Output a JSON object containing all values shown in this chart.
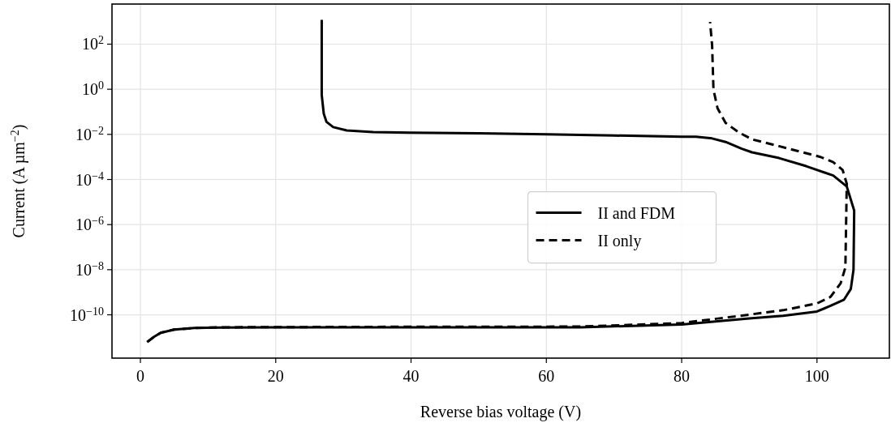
{
  "chart_data": {
    "type": "line",
    "xlabel": "Reverse bias voltage (V)",
    "ylabel": "Current (A µm$^{−2}$)",
    "log": "y",
    "grid": true,
    "legend": "center right",
    "xlim": [
      -4.2,
      110.7
    ],
    "xticks": [
      0,
      20,
      40,
      60,
      80,
      100
    ],
    "ylim": [
      1.2e-12,
      6000
    ],
    "yticks": [
      {
        "value": 100,
        "label": "10$^{2}$"
      },
      {
        "value": 1,
        "label": "10$^{0}$"
      },
      {
        "value": 0.01,
        "label": "10$^{−2}$"
      },
      {
        "value": 0.0001,
        "label": "10$^{−4}$"
      },
      {
        "value": 1e-06,
        "label": "10$^{−6}$"
      },
      {
        "value": 1e-08,
        "label": "10$^{−8}$"
      },
      {
        "value": 1e-10,
        "label": "10$^{−10}$"
      }
    ],
    "series": [
      {
        "name": "II and FDM",
        "color": "#000000",
        "line_style": "solid",
        "x": [
          1,
          2,
          3,
          5,
          8,
          12,
          20,
          40,
          65,
          80,
          90,
          95,
          100,
          102,
          104,
          105,
          105.4,
          105.5,
          104.4,
          102.4,
          98.4,
          94.4,
          90.4,
          88.9,
          86.5,
          84.5,
          82.1,
          80,
          70,
          60,
          50,
          40,
          34.4,
          30.5,
          28.5,
          27.5,
          27.1,
          26.8,
          26.8
        ],
        "values": [
          6.2e-12,
          1.05e-11,
          1.6e-11,
          2.2e-11,
          2.6e-11,
          2.75e-11,
          2.8e-11,
          2.8e-11,
          2.8e-11,
          3.7e-11,
          6.9e-11,
          9.1e-11,
          1.4e-10,
          2.5e-10,
          4.7e-10,
          1.4e-09,
          1e-08,
          4.2e-06,
          4.9e-05,
          0.00015,
          0.00039,
          0.00089,
          0.0016,
          0.0023,
          0.0046,
          0.0066,
          0.0078,
          0.0079,
          0.0089,
          0.01,
          0.0112,
          0.012,
          0.0126,
          0.015,
          0.021,
          0.036,
          0.083,
          0.56,
          1200
        ]
      },
      {
        "name": "II only",
        "color": "#000000",
        "line_style": "dashed",
        "x": [
          1,
          2,
          3,
          5,
          8,
          12,
          40,
          65,
          80,
          90,
          95,
          100,
          102,
          103.5,
          104.2,
          104.4,
          103.8,
          102.4,
          100.4,
          94.4,
          90.4,
          88.5,
          86.5,
          85.3,
          84.7,
          84.5,
          84.2
        ],
        "values": [
          6.2e-12,
          1.05e-11,
          1.6e-11,
          2.2e-11,
          2.6e-11,
          2.8e-11,
          2.95e-11,
          3e-11,
          4.3e-11,
          1.02e-10,
          1.6e-10,
          3.2e-10,
          6.2e-10,
          2.5e-09,
          1.26e-08,
          6.5e-05,
          0.00026,
          0.00059,
          0.00102,
          0.003,
          0.006,
          0.012,
          0.032,
          0.145,
          0.98,
          89,
          955
        ]
      }
    ]
  }
}
